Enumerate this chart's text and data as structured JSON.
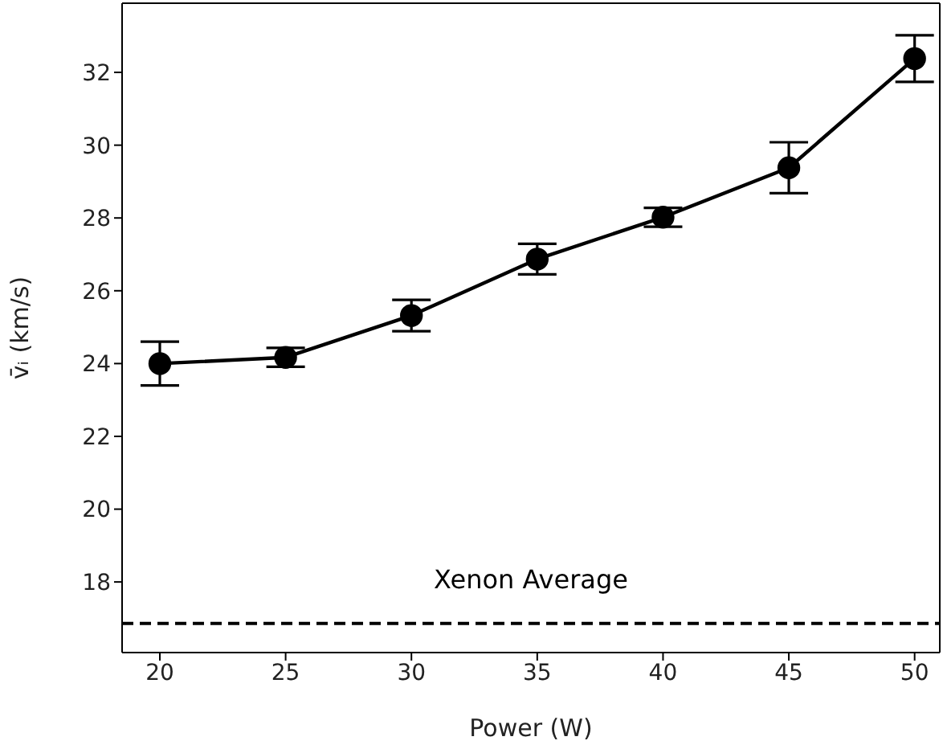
{
  "chart_data": {
    "type": "line",
    "xlabel": "Power (W)",
    "ylabel": "v̄ᵢ (km/s)",
    "x": [
      20,
      25,
      30,
      35,
      40,
      45,
      50
    ],
    "series": [
      {
        "color": "#000000",
        "values": [
          24.0,
          24.17,
          25.32,
          26.87,
          28.02,
          29.38,
          32.38
        ],
        "errors": [
          0.6,
          0.26,
          0.43,
          0.42,
          0.26,
          0.7,
          0.64
        ]
      }
    ],
    "xlim": [
      18.5,
      51
    ],
    "xticks": [
      20,
      25,
      30,
      35,
      40,
      45,
      50
    ],
    "ylim": [
      16.06,
      33.9
    ],
    "yticks": [
      18,
      20,
      22,
      24,
      26,
      28,
      30,
      32
    ],
    "ref_lines": [
      {
        "axis": "y",
        "value": 16.86,
        "label": "Xenon Average",
        "color": "#000000",
        "line_style": "dashed"
      }
    ],
    "marker": "circle",
    "line_style": "solid",
    "grid": false,
    "legend": false
  }
}
